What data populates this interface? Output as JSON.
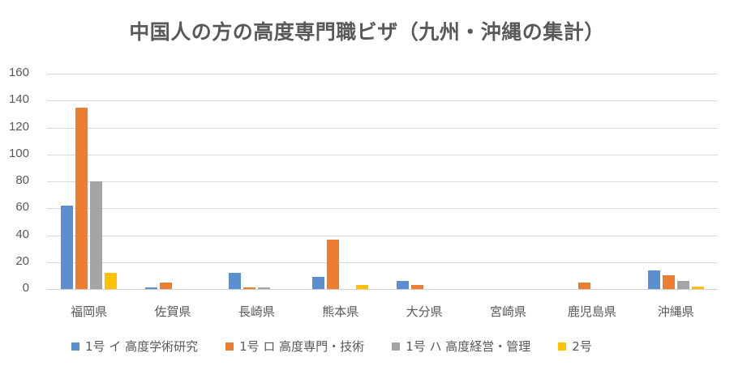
{
  "chart_data": {
    "type": "bar",
    "title": "中国人の方の高度専門職ビザ（九州・沖縄の集計）",
    "xlabel": "",
    "ylabel": "",
    "ylim": [
      0,
      160
    ],
    "yticks": [
      "0",
      "20",
      "40",
      "60",
      "80",
      "100",
      "120",
      "140",
      "160"
    ],
    "grid": true,
    "legend_position": "bottom",
    "categories": [
      "福岡県",
      "佐賀県",
      "長崎県",
      "熊本県",
      "大分県",
      "宮崎県",
      "鹿児島県",
      "沖縄県"
    ],
    "series": [
      {
        "name": "1号 イ 高度学術研究",
        "color": "#5b8fd0",
        "values": [
          62,
          1,
          12,
          9,
          6,
          0,
          0,
          14
        ]
      },
      {
        "name": "1号 ロ 高度専門・技術",
        "color": "#ed7d31",
        "values": [
          135,
          5,
          1,
          37,
          3,
          0,
          5,
          10
        ]
      },
      {
        "name": "1号 ハ 高度経営・管理",
        "color": "#a5a5a5",
        "values": [
          80,
          0,
          1,
          0,
          0,
          0,
          0,
          6
        ]
      },
      {
        "name": "2号",
        "color": "#ffc000",
        "values": [
          12,
          0,
          0,
          3,
          0,
          0,
          0,
          2
        ]
      }
    ]
  },
  "legend": {
    "items": [
      {
        "label": "1号 イ 高度学術研究",
        "color": "#5b8fd0"
      },
      {
        "label": "1号 ロ 高度専門・技術",
        "color": "#ed7d31"
      },
      {
        "label": "1号 ハ 高度経営・管理",
        "color": "#a5a5a5"
      },
      {
        "label": "2号",
        "color": "#ffc000"
      }
    ]
  }
}
